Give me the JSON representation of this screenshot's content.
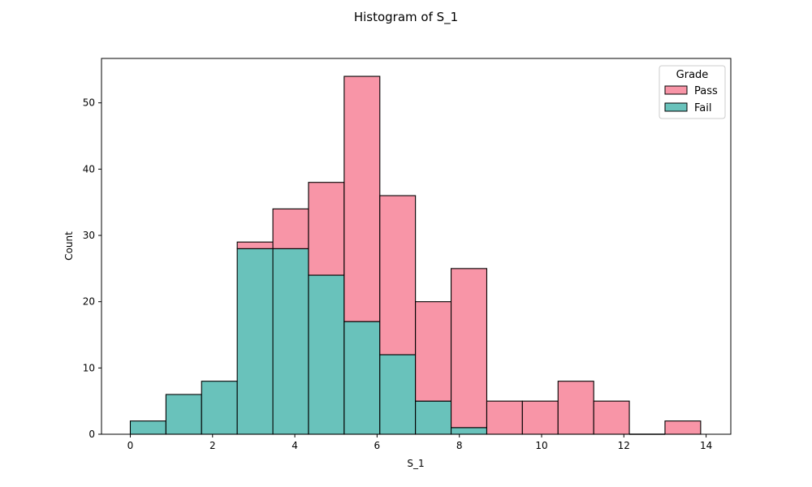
{
  "chart_data": {
    "type": "bar",
    "stacked": true,
    "title": "Histogram of S_1",
    "xlabel": "S_1",
    "ylabel": "Count",
    "xlim": [
      -0.7,
      14.6
    ],
    "ylim": [
      0,
      56.7
    ],
    "xticks": [
      0,
      2,
      4,
      6,
      8,
      10,
      12,
      14
    ],
    "yticks": [
      0,
      10,
      20,
      30,
      40,
      50
    ],
    "bin_edges": [
      0,
      0.867,
      1.733,
      2.6,
      3.467,
      4.333,
      5.2,
      6.067,
      6.933,
      7.8,
      8.667,
      9.533,
      10.4,
      11.267,
      12.133,
      13.0,
      13.867
    ],
    "legend": {
      "title": "Grade",
      "position": "top-right"
    },
    "series": [
      {
        "name": "Fail",
        "color": "#69c2bb",
        "values": [
          2,
          6,
          8,
          28,
          28,
          24,
          17,
          12,
          5,
          1,
          0,
          0,
          0,
          0,
          0,
          0
        ]
      },
      {
        "name": "Pass",
        "color": "#f895a7",
        "values": [
          0,
          0,
          0,
          1,
          6,
          14,
          37,
          24,
          15,
          24,
          5,
          5,
          8,
          5,
          0,
          2
        ]
      }
    ],
    "legend_order": [
      "Pass",
      "Fail"
    ]
  }
}
